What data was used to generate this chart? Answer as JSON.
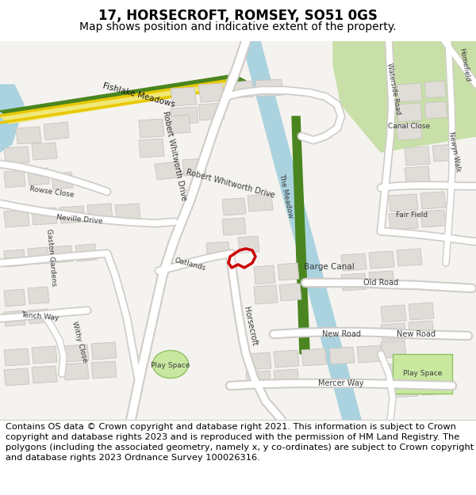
{
  "title": "17, HORSECROFT, ROMSEY, SO51 0GS",
  "subtitle": "Map shows position and indicative extent of the property.",
  "copyright_text": "Contains OS data © Crown copyright and database right 2021. This information is subject to Crown copyright and database rights 2023 and is reproduced with the permission of HM Land Registry. The polygons (including the associated geometry, namely x, y co-ordinates) are subject to Crown copyright and database rights 2023 Ordnance Survey 100026316.",
  "title_fontsize": 12,
  "subtitle_fontsize": 10,
  "copyright_fontsize": 8.2,
  "map_bg": "#f5f3ef",
  "road_color": "#ffffff",
  "building_fill": "#e0ddd8",
  "building_outline": "#c8c5c0",
  "canal_color": "#aad3df",
  "green_strip_color": "#6fa832",
  "road_yellow": "#f5f0c8",
  "road_yellow_outline": "#c8b400",
  "fishlake_green": "#4a8520",
  "fishlake_yellow": "#f0e878",
  "marker_color": "#cc0000",
  "green_area_light": "#cce8b0",
  "figsize": [
    6.0,
    6.25
  ],
  "dpi": 100
}
